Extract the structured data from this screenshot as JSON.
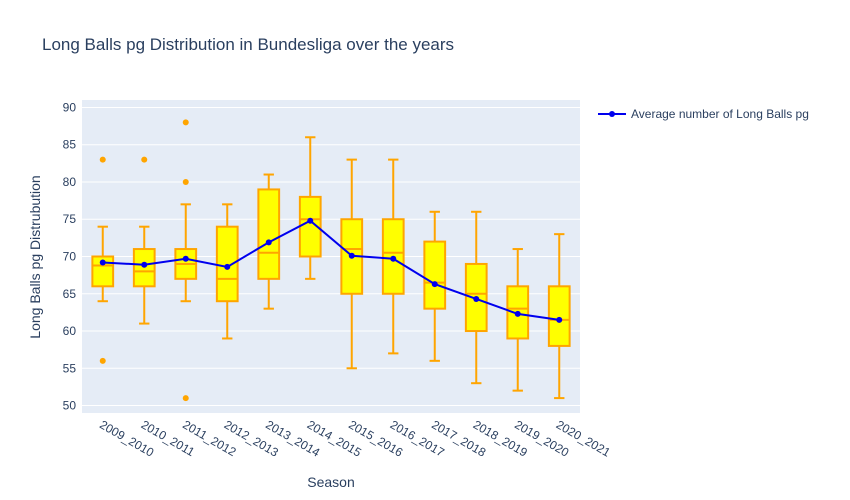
{
  "chart_data": {
    "type": "box",
    "title": "Long Balls pg Distribution in Bundesliga over the years",
    "xlabel": "Season",
    "ylabel": "Long Balls pg Distrubution",
    "ylim": [
      49,
      91
    ],
    "yticks": [
      50,
      55,
      60,
      65,
      70,
      75,
      80,
      85,
      90
    ],
    "categories": [
      "2009_2010",
      "2010_2011",
      "2011_2012",
      "2012_2013",
      "2013_2014",
      "2014_2015",
      "2015_2016",
      "2016_2017",
      "2017_2018",
      "2018_2019",
      "2019_2020",
      "2020_2021"
    ],
    "boxes": [
      {
        "q1": 66,
        "median": 68.8,
        "q3": 70,
        "lower": 64,
        "upper": 74,
        "outliers": [
          83,
          56
        ]
      },
      {
        "q1": 66,
        "median": 68,
        "q3": 71,
        "lower": 61,
        "upper": 74,
        "outliers": [
          83
        ]
      },
      {
        "q1": 67,
        "median": 69,
        "q3": 71,
        "lower": 64,
        "upper": 77,
        "outliers": [
          88,
          80,
          51
        ]
      },
      {
        "q1": 64,
        "median": 67,
        "q3": 74,
        "lower": 59,
        "upper": 77,
        "outliers": []
      },
      {
        "q1": 67,
        "median": 70.5,
        "q3": 79,
        "lower": 63,
        "upper": 81,
        "outliers": []
      },
      {
        "q1": 70,
        "median": 75,
        "q3": 78,
        "lower": 67,
        "upper": 86,
        "outliers": []
      },
      {
        "q1": 65,
        "median": 71,
        "q3": 75,
        "lower": 55,
        "upper": 83,
        "outliers": []
      },
      {
        "q1": 65,
        "median": 70.5,
        "q3": 75,
        "lower": 57,
        "upper": 83,
        "outliers": []
      },
      {
        "q1": 63,
        "median": 66.5,
        "q3": 72,
        "lower": 56,
        "upper": 76,
        "outliers": []
      },
      {
        "q1": 60,
        "median": 65,
        "q3": 69,
        "lower": 53,
        "upper": 76,
        "outliers": []
      },
      {
        "q1": 59,
        "median": 63,
        "q3": 66,
        "lower": 52,
        "upper": 71,
        "outliers": []
      },
      {
        "q1": 58,
        "median": 61.5,
        "q3": 66,
        "lower": 51,
        "upper": 73,
        "outliers": []
      }
    ],
    "series": [
      {
        "name": "Average number of Long Balls pg",
        "values": [
          69.2,
          68.9,
          69.7,
          68.6,
          71.9,
          74.8,
          70.1,
          69.7,
          66.3,
          64.3,
          62.3,
          61.5
        ]
      }
    ],
    "legend_position": "top-right",
    "grid": true,
    "colors": {
      "plot_bg": "#e5ecf6",
      "grid": "#ffffff",
      "box_fill": "#ffff00",
      "box_line": "#ffa500",
      "line": "#0000ee",
      "text": "#2a3f5f",
      "tick": "#506784"
    }
  }
}
